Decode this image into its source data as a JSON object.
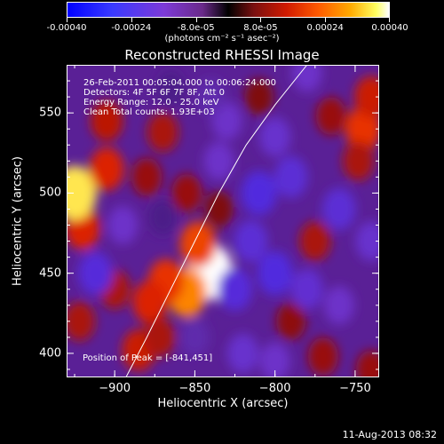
{
  "colorbar": {
    "tick_labels": [
      "-0.00040",
      "-0.00024",
      "-8.0e-05",
      "8.0e-05",
      "0.00024",
      "0.00040"
    ],
    "tick_values": [
      -0.0004,
      -0.00024,
      -8e-05,
      8e-05,
      0.00024,
      0.0004
    ],
    "range": [
      -0.0004,
      0.0004
    ],
    "units": "(photons cm⁻² s⁻¹ asec⁻²)"
  },
  "chart_data": {
    "type": "heatmap",
    "title": "Reconstructed RHESSI Image",
    "xlabel": "Heliocentric X (arcsec)",
    "ylabel": "Heliocentric Y (arcsec)",
    "xlim": [
      -930,
      -735
    ],
    "ylim": [
      385,
      580
    ],
    "xticks": [
      -900,
      -850,
      -800,
      -750
    ],
    "xtick_labels": [
      "−900",
      "−850",
      "−800",
      "−750"
    ],
    "yticks": [
      400,
      450,
      500,
      550
    ],
    "ytick_labels": [
      "400",
      "450",
      "500",
      "550"
    ],
    "annotations": [
      "26-Feb-2011 00:05:04.000 to 00:06:24.000",
      "Detectors: 4F 5F 6F 7F 8F, Att 0",
      "Energy Range: 12.0 - 25.0 keV",
      "Clean     Total counts: 1.93E+03"
    ],
    "peak_label": "Position of Peak = [-841,451]",
    "peak": [
      -841,
      451
    ],
    "limb_curve": {
      "x": [
        -893,
        -880,
        -865,
        -850,
        -835,
        -818,
        -800,
        -780
      ],
      "y": [
        385,
        410,
        440,
        470,
        500,
        530,
        555,
        580
      ]
    },
    "blobs": [
      {
        "x": -841,
        "y": 451,
        "v": 0.0004
      },
      {
        "x": -848,
        "y": 468,
        "v": 0.00022
      },
      {
        "x": -855,
        "y": 438,
        "v": 0.00028
      },
      {
        "x": -868,
        "y": 445,
        "v": 0.0002
      },
      {
        "x": -878,
        "y": 432,
        "v": 0.00018
      },
      {
        "x": -885,
        "y": 402,
        "v": 0.00016
      },
      {
        "x": -872,
        "y": 410,
        "v": 0.00012
      },
      {
        "x": -900,
        "y": 440,
        "v": 0.00012
      },
      {
        "x": -920,
        "y": 478,
        "v": 0.00018
      },
      {
        "x": -925,
        "y": 500,
        "v": 0.00036
      },
      {
        "x": -905,
        "y": 515,
        "v": 0.00018
      },
      {
        "x": -880,
        "y": 510,
        "v": 0.0001
      },
      {
        "x": -870,
        "y": 538,
        "v": 0.00012
      },
      {
        "x": -905,
        "y": 545,
        "v": 0.00014
      },
      {
        "x": -855,
        "y": 500,
        "v": 0.0001
      },
      {
        "x": -922,
        "y": 420,
        "v": 0.00012
      },
      {
        "x": -745,
        "y": 540,
        "v": 0.0002
      },
      {
        "x": -748,
        "y": 520,
        "v": 0.00012
      },
      {
        "x": -740,
        "y": 560,
        "v": 0.00016
      },
      {
        "x": -765,
        "y": 548,
        "v": 0.0001
      },
      {
        "x": -775,
        "y": 470,
        "v": 0.00012
      },
      {
        "x": -770,
        "y": 398,
        "v": 0.0001
      },
      {
        "x": -790,
        "y": 420,
        "v": 9e-05
      },
      {
        "x": -740,
        "y": 390,
        "v": 0.0001
      },
      {
        "x": -835,
        "y": 490,
        "v": 8e-05
      },
      {
        "x": -810,
        "y": 560,
        "v": 8e-05
      },
      {
        "x": -912,
        "y": 450,
        "v": -0.00018
      },
      {
        "x": -895,
        "y": 480,
        "v": -0.0001
      },
      {
        "x": -870,
        "y": 485,
        "v": -6e-05
      },
      {
        "x": -815,
        "y": 470,
        "v": -0.00016
      },
      {
        "x": -825,
        "y": 440,
        "v": -0.00018
      },
      {
        "x": -800,
        "y": 450,
        "v": -0.0002
      },
      {
        "x": -780,
        "y": 440,
        "v": -0.00014
      },
      {
        "x": -810,
        "y": 500,
        "v": -0.0002
      },
      {
        "x": -790,
        "y": 510,
        "v": -0.00016
      },
      {
        "x": -800,
        "y": 535,
        "v": -0.00012
      },
      {
        "x": -830,
        "y": 545,
        "v": -0.0001
      },
      {
        "x": -760,
        "y": 490,
        "v": -0.00016
      },
      {
        "x": -740,
        "y": 470,
        "v": -0.00012
      },
      {
        "x": -760,
        "y": 430,
        "v": -0.0001
      },
      {
        "x": -820,
        "y": 400,
        "v": -0.00012
      },
      {
        "x": -800,
        "y": 395,
        "v": -0.0001
      },
      {
        "x": -850,
        "y": 410,
        "v": -8e-05
      },
      {
        "x": -835,
        "y": 520,
        "v": -0.0001
      },
      {
        "x": -840,
        "y": 560,
        "v": -8e-05
      },
      {
        "x": -780,
        "y": 575,
        "v": -0.0001
      },
      {
        "x": -865,
        "y": 565,
        "v": -6e-05
      }
    ]
  },
  "footer_timestamp": "11-Aug-2013 08:32"
}
